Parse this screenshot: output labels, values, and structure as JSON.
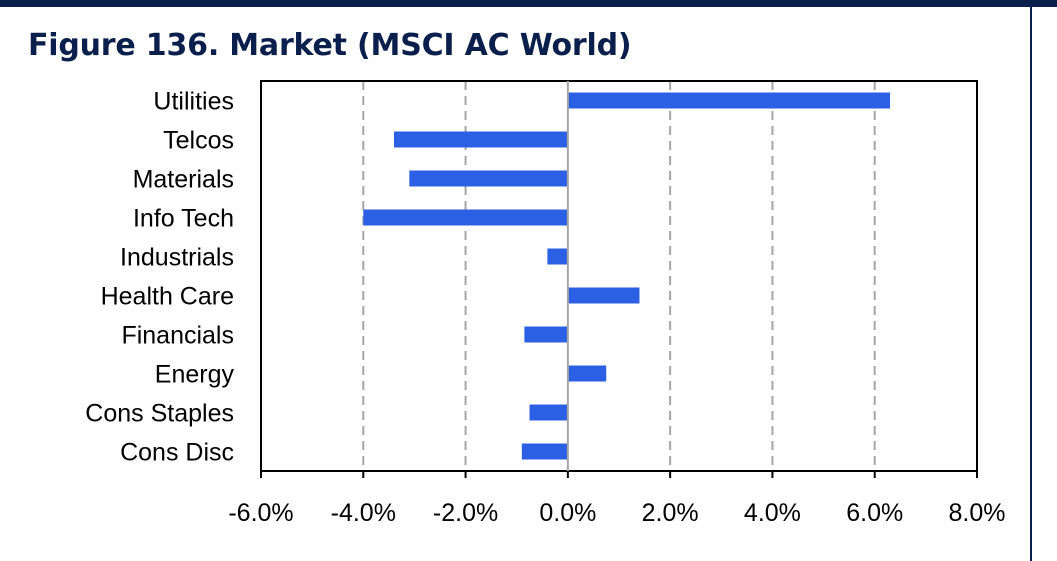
{
  "figure": {
    "title": "Figure 136. Market (MSCI AC World)"
  },
  "colors": {
    "bar": "#2b5fe4",
    "header": "#0b1f4d",
    "grid": "#a6a6a6",
    "axis": "#000000"
  },
  "chart_data": {
    "type": "bar",
    "orientation": "horizontal",
    "title": "Figure 136. Market (MSCI AC World)",
    "categories": [
      "Utilities",
      "Telcos",
      "Materials",
      "Info Tech",
      "Industrials",
      "Health Care",
      "Financials",
      "Energy",
      "Cons Staples",
      "Cons Disc"
    ],
    "values": [
      6.3,
      -3.4,
      -3.1,
      -4.0,
      -0.4,
      1.4,
      -0.85,
      0.75,
      -0.75,
      -0.9
    ],
    "xlim": [
      -6.0,
      8.0
    ],
    "xticks": [
      -6.0,
      -4.0,
      -2.0,
      0.0,
      2.0,
      4.0,
      6.0,
      8.0
    ],
    "xtick_labels": [
      "-6.0%",
      "-4.0%",
      "-2.0%",
      "0.0%",
      "2.0%",
      "4.0%",
      "6.0%",
      "8.0%"
    ],
    "xlabel": "",
    "ylabel": "",
    "grid": "vertical dashed",
    "legend": "none"
  }
}
